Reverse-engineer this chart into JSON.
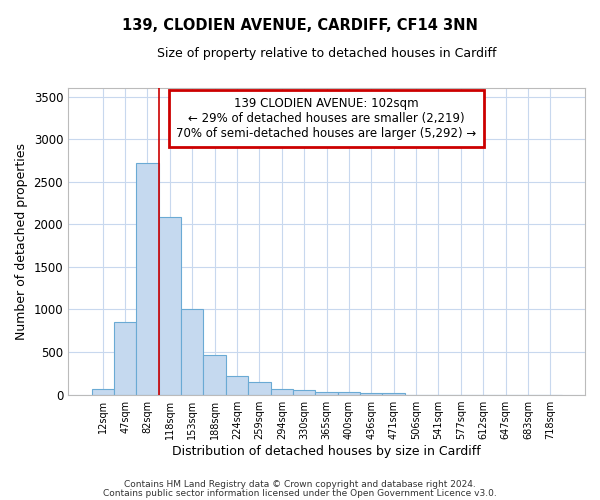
{
  "title1": "139, CLODIEN AVENUE, CARDIFF, CF14 3NN",
  "title2": "Size of property relative to detached houses in Cardiff",
  "xlabel": "Distribution of detached houses by size in Cardiff",
  "ylabel": "Number of detached properties",
  "bar_labels": [
    "12sqm",
    "47sqm",
    "82sqm",
    "118sqm",
    "153sqm",
    "188sqm",
    "224sqm",
    "259sqm",
    "294sqm",
    "330sqm",
    "365sqm",
    "400sqm",
    "436sqm",
    "471sqm",
    "506sqm",
    "541sqm",
    "577sqm",
    "612sqm",
    "647sqm",
    "683sqm",
    "718sqm"
  ],
  "bar_values": [
    60,
    850,
    2720,
    2080,
    1010,
    460,
    215,
    150,
    70,
    50,
    35,
    30,
    20,
    15,
    0,
    0,
    0,
    0,
    0,
    0,
    0
  ],
  "bar_color": "#c5d9ef",
  "bar_edge_color": "#6aaad4",
  "bar_linewidth": 0.8,
  "vline_x": 2.5,
  "vline_color": "#cc0000",
  "vline_linewidth": 1.2,
  "ylim": [
    0,
    3600
  ],
  "yticks": [
    0,
    500,
    1000,
    1500,
    2000,
    2500,
    3000,
    3500
  ],
  "annotation_text": "139 CLODIEN AVENUE: 102sqm\n← 29% of detached houses are smaller (2,219)\n70% of semi-detached houses are larger (5,292) →",
  "annotation_box_color": "#ffffff",
  "annotation_border_color": "#cc0000",
  "footer1": "Contains HM Land Registry data © Crown copyright and database right 2024.",
  "footer2": "Contains public sector information licensed under the Open Government Licence v3.0.",
  "background_color": "#ffffff",
  "plot_bg_color": "#ffffff",
  "grid_color": "#c8d8ee"
}
